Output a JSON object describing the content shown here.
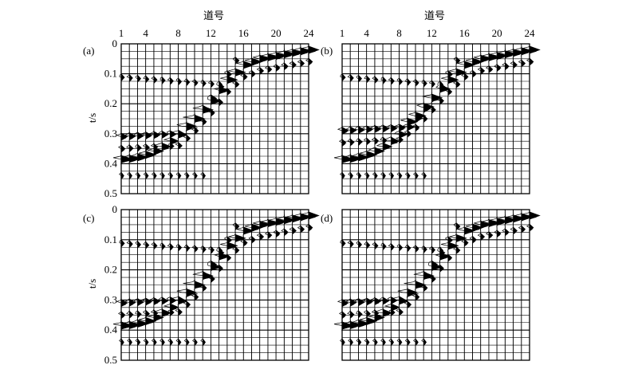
{
  "figure": {
    "xlabel": "道号",
    "ylabel": "t/s"
  },
  "chart_data": [
    {
      "type": "other",
      "panel_label": "(a)",
      "xlabel": "道号",
      "ylabel": "t/s",
      "x_ticks": [
        1,
        4,
        8,
        12,
        16,
        20,
        24
      ],
      "y_ticks": [
        "0",
        "0.1",
        "0.2",
        "0.3",
        "0.4",
        "0.5"
      ],
      "xlim": [
        1,
        24
      ],
      "ylim": [
        0,
        0.5
      ],
      "grid": true,
      "traces": 24,
      "events": [
        {
          "kind": "reflection",
          "t0": 0.385,
          "x_apex": 1,
          "k": 0.00028
        },
        {
          "kind": "direct",
          "x": [
            1,
            8,
            10,
            12,
            14,
            16,
            18,
            20,
            22,
            24
          ],
          "t": [
            0.31,
            0.3,
            0.25,
            0.19,
            0.12,
            0.07,
            0.05,
            0.04,
            0.03,
            0.02
          ]
        }
      ]
    },
    {
      "type": "other",
      "panel_label": "(b)",
      "xlabel": "道号",
      "ylabel": "",
      "x_ticks": [
        1,
        4,
        8,
        12,
        16,
        20,
        24
      ],
      "y_ticks": [],
      "xlim": [
        1,
        24
      ],
      "ylim": [
        0,
        0.5
      ],
      "grid": true,
      "traces": 24,
      "events": [
        {
          "kind": "reflection",
          "t0": 0.385,
          "x_apex": 1,
          "k": 0.00028
        },
        {
          "kind": "direct",
          "x": [
            1,
            8,
            10,
            12,
            14,
            16,
            18,
            20,
            22,
            24
          ],
          "t": [
            0.29,
            0.28,
            0.24,
            0.18,
            0.12,
            0.07,
            0.05,
            0.04,
            0.03,
            0.02
          ]
        }
      ]
    },
    {
      "type": "other",
      "panel_label": "(c)",
      "xlabel": "",
      "ylabel": "t/s",
      "x_ticks": [],
      "y_ticks": [
        "0",
        "0.1",
        "0.2",
        "0.3",
        "0.4",
        "0.5"
      ],
      "xlim": [
        1,
        24
      ],
      "ylim": [
        0,
        0.5
      ],
      "grid": true,
      "traces": 24,
      "events": [
        {
          "kind": "reflection",
          "t0": 0.385,
          "x_apex": 1,
          "k": 0.00028
        },
        {
          "kind": "direct",
          "x": [
            1,
            8,
            10,
            12,
            14,
            16,
            18,
            20,
            22,
            24
          ],
          "t": [
            0.31,
            0.3,
            0.25,
            0.19,
            0.12,
            0.07,
            0.05,
            0.04,
            0.03,
            0.02
          ]
        }
      ]
    },
    {
      "type": "other",
      "panel_label": "(d)",
      "xlabel": "",
      "ylabel": "",
      "x_ticks": [],
      "y_ticks": [],
      "xlim": [
        1,
        24
      ],
      "ylim": [
        0,
        0.5
      ],
      "grid": true,
      "traces": 24,
      "events": [
        {
          "kind": "reflection",
          "t0": 0.385,
          "x_apex": 1,
          "k": 0.00028
        },
        {
          "kind": "direct",
          "x": [
            1,
            8,
            10,
            12,
            14,
            16,
            18,
            20,
            22,
            24
          ],
          "t": [
            0.31,
            0.3,
            0.25,
            0.19,
            0.12,
            0.07,
            0.05,
            0.04,
            0.03,
            0.02
          ]
        }
      ]
    }
  ]
}
